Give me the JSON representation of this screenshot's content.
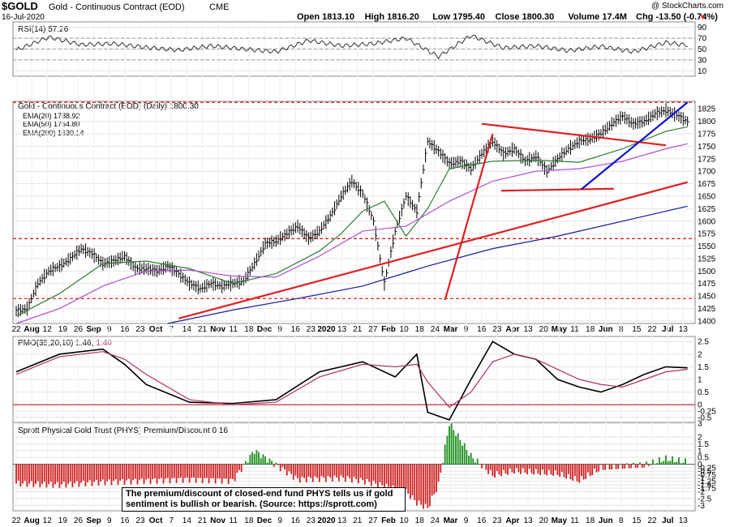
{
  "header": {
    "symbol": "$GOLD",
    "name": "Gold - Continuous Contract (EOD)",
    "exchange": "CME",
    "date": "16-Jul-2020",
    "copyright": "@ StockCharts.com",
    "ohlc": [
      {
        "label": "Open",
        "value": "1813.10"
      },
      {
        "label": "High",
        "value": "1816.20"
      },
      {
        "label": "Low",
        "value": "1795.40"
      },
      {
        "label": "Close",
        "value": "1800.30"
      },
      {
        "label": "Volume",
        "value": "17.4M"
      },
      {
        "label": "Chg",
        "value": "-13.50 (-0.74%)"
      }
    ],
    "down_marker": "▼"
  },
  "colors": {
    "up_price": "#000000",
    "ema20": "#2e7d32",
    "ema50": "#b04fd0",
    "ema200": "#1a1a9a",
    "trend_red": "#e02020",
    "trend_blue": "#1010d0",
    "pmo_line": "#000000",
    "pmo_signal": "#b0306a",
    "hist_pos": "#1a8f1a",
    "hist_neg": "#d02020",
    "rsi_fill": "#9c8a6a"
  },
  "legends": {
    "rsi": "RSI(14) 57.26",
    "price": "Gold - Continuous Contract (EOD) (Daily) 1800.30",
    "ema20": "EMA(20) 1788.92",
    "ema50": "EMA(50) 1754.80",
    "ema200": "EMA(200) 1630.14",
    "pmo_a": "PMO(35,20,10) 1.46,",
    "pmo_b": "1.40",
    "phys": "Sprott Physical Gold Trust (PHYS) Premium/Discount 0.16"
  },
  "note_text": "The premium/discount of closed-end fund PHYS tells us if gold sentiment is bullish or bearish. (Source: https://sprott.com)",
  "chart_data": [
    {
      "type": "line",
      "title": "RSI(14) 57.26",
      "y_ticks": [
        10,
        30,
        50,
        70,
        90
      ],
      "ylim": [
        0,
        100
      ],
      "guides": [
        30,
        50,
        70
      ],
      "series": [
        {
          "name": "RSI(14)",
          "x_index": [
            0,
            15,
            30,
            45,
            60,
            75,
            90,
            105,
            120,
            135,
            150,
            165,
            180,
            195,
            210,
            225,
            240,
            255,
            270,
            285,
            300,
            310
          ],
          "values": [
            48,
            72,
            58,
            60,
            53,
            48,
            56,
            50,
            45,
            66,
            56,
            60,
            70,
            36,
            75,
            52,
            56,
            47,
            55,
            45,
            62,
            57
          ]
        }
      ]
    },
    {
      "type": "line",
      "title": "Gold - Continuous Contract (EOD) (Daily) 1800.30",
      "x_tick_labels": [
        "22",
        "Aug",
        "12",
        "19",
        "26",
        "Sep",
        "9",
        "16",
        "23",
        "Oct",
        "7",
        "14",
        "21",
        "Nov",
        "11",
        "18",
        "Dec",
        "9",
        "16",
        "23",
        "2020",
        "13",
        "21",
        "27",
        "Feb",
        "10",
        "18",
        "24",
        "Mar",
        "9",
        "16",
        "23",
        "Apr",
        "13",
        "20",
        "May",
        "11",
        "18",
        "Jun",
        "8",
        "15",
        "22",
        "Jul",
        "13"
      ],
      "y_ticks": [
        1400,
        1425,
        1450,
        1475,
        1500,
        1525,
        1550,
        1575,
        1600,
        1625,
        1650,
        1675,
        1700,
        1725,
        1750,
        1775,
        1800,
        1825
      ],
      "ylim": [
        1395,
        1840
      ],
      "horizontal_levels": [
        1445,
        1565,
        1838
      ],
      "series": [
        {
          "name": "Gold - Continuous Contract (EOD) (Daily) 1800.30",
          "x_index": [
            0,
            5,
            10,
            15,
            20,
            25,
            30,
            35,
            40,
            45,
            50,
            55,
            60,
            65,
            70,
            75,
            80,
            85,
            90,
            95,
            100,
            105,
            110,
            115,
            120,
            125,
            130,
            135,
            140,
            145,
            150,
            155,
            160,
            165,
            170,
            175,
            180,
            185,
            190,
            195,
            200,
            205,
            210,
            215,
            220,
            225,
            230,
            235,
            240,
            245,
            250,
            255,
            260,
            265,
            270,
            275,
            280,
            285,
            290,
            295,
            300,
            305,
            310
          ],
          "values": [
            1420,
            1425,
            1475,
            1500,
            1510,
            1525,
            1545,
            1535,
            1515,
            1520,
            1530,
            1505,
            1505,
            1500,
            1510,
            1495,
            1475,
            1465,
            1475,
            1470,
            1475,
            1480,
            1515,
            1555,
            1560,
            1575,
            1590,
            1565,
            1580,
            1610,
            1650,
            1680,
            1655,
            1600,
            1475,
            1580,
            1650,
            1620,
            1760,
            1740,
            1715,
            1720,
            1705,
            1735,
            1760,
            1735,
            1745,
            1720,
            1730,
            1700,
            1725,
            1745,
            1760,
            1765,
            1775,
            1795,
            1810,
            1795,
            1800,
            1815,
            1822,
            1812,
            1800
          ]
        },
        {
          "name": "EMA(20) 1788.92",
          "x_index": [
            0,
            20,
            40,
            60,
            80,
            100,
            120,
            140,
            150,
            160,
            170,
            180,
            190,
            200,
            220,
            240,
            260,
            280,
            300,
            310
          ],
          "values": [
            1410,
            1455,
            1515,
            1520,
            1505,
            1475,
            1495,
            1540,
            1575,
            1620,
            1640,
            1570,
            1625,
            1705,
            1720,
            1722,
            1718,
            1745,
            1780,
            1789
          ]
        },
        {
          "name": "EMA(50) 1754.80",
          "x_index": [
            0,
            20,
            40,
            60,
            80,
            100,
            120,
            140,
            160,
            180,
            200,
            220,
            240,
            260,
            280,
            300,
            310
          ],
          "values": [
            1395,
            1425,
            1470,
            1500,
            1502,
            1490,
            1488,
            1530,
            1580,
            1590,
            1640,
            1680,
            1700,
            1705,
            1720,
            1745,
            1755
          ]
        },
        {
          "name": "EMA(200) 1630.14",
          "x_index": [
            70,
            100,
            130,
            160,
            190,
            220,
            250,
            280,
            310
          ],
          "values": [
            1395,
            1422,
            1445,
            1470,
            1510,
            1545,
            1570,
            1600,
            1630
          ]
        }
      ],
      "trendlines": [
        {
          "color": "trend_red",
          "from": [
            75,
            1405
          ],
          "to": [
            310,
            1678
          ]
        },
        {
          "color": "trend_red",
          "from": [
            198,
            1442
          ],
          "to": [
            220,
            1775
          ]
        },
        {
          "color": "trend_red",
          "from": [
            215,
            1795
          ],
          "to": [
            300,
            1752
          ]
        },
        {
          "color": "trend_red",
          "from": [
            224,
            1661
          ],
          "to": [
            276,
            1665
          ]
        },
        {
          "color": "trend_blue",
          "from": [
            261,
            1664
          ],
          "to": [
            310,
            1838
          ]
        }
      ]
    },
    {
      "type": "line",
      "title": "PMO(35,20,10) 1.46, 1.40",
      "y_ticks": [
        -0.5,
        -0.25,
        0.0,
        0.5,
        1.0,
        1.5,
        2.0,
        2.5
      ],
      "ylim": [
        -0.7,
        2.7
      ],
      "zero_line": 0.0,
      "series": [
        {
          "name": "PMO(35,20,10)",
          "x_index": [
            0,
            20,
            40,
            50,
            60,
            80,
            100,
            120,
            140,
            160,
            175,
            185,
            190,
            200,
            210,
            220,
            230,
            240,
            250,
            260,
            270,
            280,
            290,
            300,
            310
          ],
          "values": [
            1.3,
            2.0,
            2.2,
            1.6,
            0.8,
            0.1,
            0.05,
            0.2,
            1.3,
            1.7,
            1.1,
            2.0,
            -0.3,
            -0.6,
            1.0,
            2.5,
            2.0,
            1.8,
            1.0,
            0.7,
            0.5,
            0.8,
            1.2,
            1.5,
            1.46
          ]
        },
        {
          "name": "PMO signal",
          "x_index": [
            0,
            20,
            40,
            50,
            60,
            80,
            100,
            120,
            140,
            160,
            175,
            185,
            190,
            200,
            210,
            220,
            230,
            240,
            250,
            260,
            270,
            280,
            290,
            300,
            310
          ],
          "values": [
            1.2,
            1.9,
            2.1,
            1.8,
            1.2,
            0.2,
            0.0,
            0.1,
            1.1,
            1.6,
            1.5,
            1.6,
            0.9,
            -0.1,
            0.5,
            1.7,
            2.0,
            1.8,
            1.4,
            1.0,
            0.8,
            0.7,
            1.0,
            1.3,
            1.4
          ]
        }
      ]
    },
    {
      "type": "bar",
      "title": "Sprott Physical Gold Trust (PHYS) Premium/Discount 0.16",
      "x_tick_labels": [
        "22",
        "Aug",
        "12",
        "19",
        "26",
        "Sep",
        "9",
        "16",
        "23",
        "Oct",
        "7",
        "14",
        "21",
        "Nov",
        "11",
        "18",
        "Dec",
        "9",
        "16",
        "23",
        "2020",
        "13",
        "21",
        "27",
        "Feb",
        "10",
        "18",
        "24",
        "Mar",
        "9",
        "16",
        "23",
        "Apr",
        "13",
        "20",
        "May",
        "11",
        "18",
        "Jun",
        "8",
        "15",
        "22",
        "Jul",
        "13"
      ],
      "y_ticks": [
        -3,
        -2.5,
        -2,
        -1.75,
        -1.5,
        -1.25,
        -1.0,
        -0.75,
        -0.5,
        -0.25,
        0,
        0.5,
        1,
        1.5,
        2,
        3
      ],
      "ylim": [
        -3.4,
        3.0
      ],
      "series": [
        {
          "name": "Premium/Discount",
          "x_index": [
            0,
            20,
            40,
            60,
            80,
            100,
            110,
            130,
            150,
            160,
            180,
            185,
            190,
            195,
            200,
            210,
            220,
            230,
            240,
            250,
            260,
            270,
            280,
            290,
            300,
            310
          ],
          "values": [
            -1.4,
            -1.5,
            -1.3,
            -1.2,
            -1.1,
            -1.2,
            1.0,
            -1.1,
            -1.0,
            -1.2,
            -2.0,
            -2.8,
            -3.2,
            -1.5,
            3.0,
            0.6,
            -0.8,
            -0.5,
            -0.6,
            -0.7,
            -1.2,
            -0.3,
            -0.2,
            -0.1,
            0.4,
            0.16
          ]
        }
      ]
    }
  ]
}
